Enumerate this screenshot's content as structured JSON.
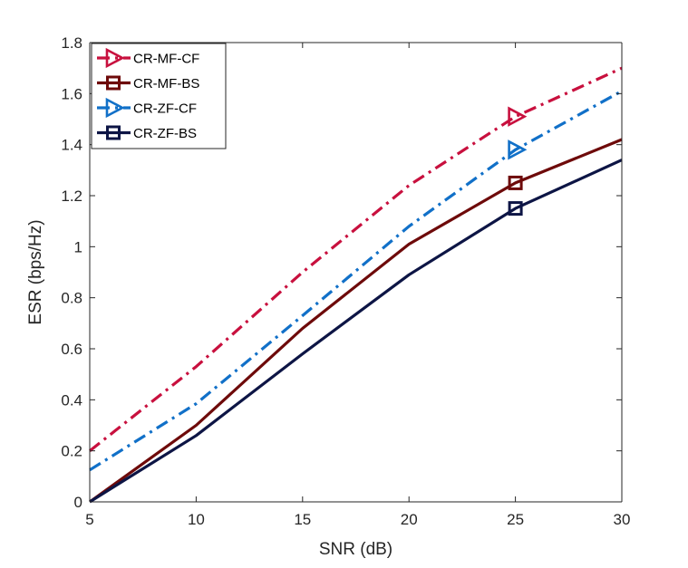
{
  "chart_data": {
    "type": "line",
    "title": "",
    "xlabel": "SNR (dB)",
    "ylabel": "ESR (bps/Hz)",
    "xlim": [
      5,
      30
    ],
    "ylim": [
      0,
      1.8
    ],
    "xticks": [
      5,
      10,
      15,
      20,
      25,
      30
    ],
    "yticks": [
      0,
      0.2,
      0.4,
      0.6,
      0.8,
      1,
      1.2,
      1.4,
      1.6,
      1.8
    ],
    "x": [
      5,
      10,
      15,
      20,
      25,
      30
    ],
    "legend_position": "top-left",
    "grid": false,
    "series": [
      {
        "name": "CR-MF-CF",
        "color": "#C8103E",
        "dash": "dashdot",
        "marker": "triangle-right",
        "values": [
          0.2,
          0.53,
          0.9,
          1.24,
          1.51,
          1.7
        ]
      },
      {
        "name": "CR-MF-BS",
        "color": "#6E0A0A",
        "dash": "solid",
        "marker": "square",
        "values": [
          0,
          0.3,
          0.68,
          1.01,
          1.25,
          1.42
        ]
      },
      {
        "name": "CR-ZF-CF",
        "color": "#1170C8",
        "dash": "dashdot",
        "marker": "triangle-right",
        "values": [
          0.125,
          0.385,
          0.73,
          1.08,
          1.38,
          1.61
        ]
      },
      {
        "name": "CR-ZF-BS",
        "color": "#0D1545",
        "dash": "solid",
        "marker": "square",
        "values": [
          0,
          0.26,
          0.58,
          0.89,
          1.15,
          1.34
        ]
      }
    ],
    "marker_at_x": 25
  }
}
